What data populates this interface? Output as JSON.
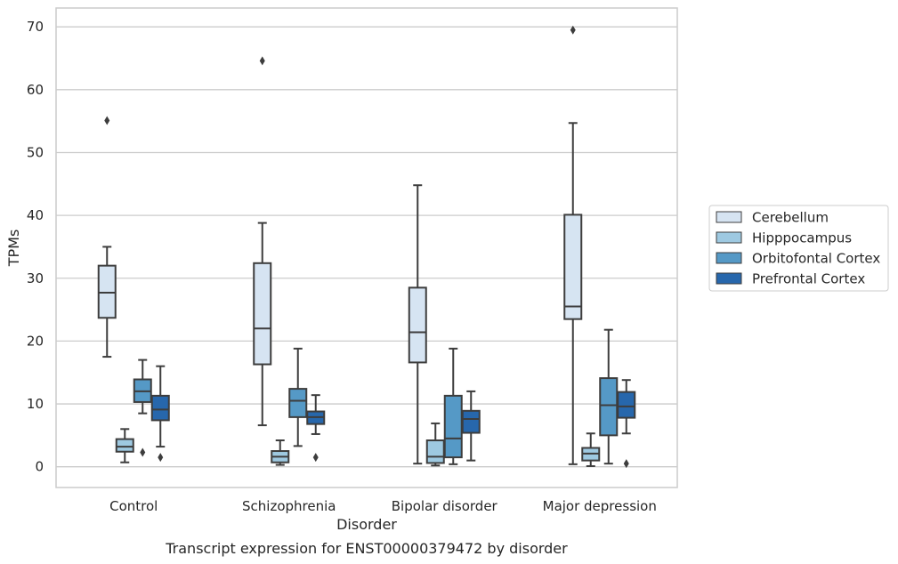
{
  "chart_data": {
    "type": "box",
    "xlabel": "Disorder",
    "ylabel": "TPMs",
    "caption": "Transcript expression for ENST00000379472 by disorder",
    "ylim": [
      -3.3,
      73
    ],
    "yticks": [
      0,
      10,
      20,
      30,
      40,
      50,
      60,
      70
    ],
    "grid": "horizontal",
    "legend_position": "right",
    "categories": [
      "Control",
      "Schizophrenia",
      "Bipolar disorder",
      "Major depression"
    ],
    "series": [
      {
        "name": "Cerebellum",
        "color": "#d6e4f2",
        "boxes": [
          {
            "whisker_low": 17.5,
            "q1": 23.7,
            "median": 27.7,
            "q3": 32.0,
            "whisker_high": 35.0,
            "outliers": [
              55.1
            ]
          },
          {
            "whisker_low": 6.6,
            "q1": 16.3,
            "median": 22.0,
            "q3": 32.4,
            "whisker_high": 38.8,
            "outliers": [
              64.6
            ]
          },
          {
            "whisker_low": 0.5,
            "q1": 16.6,
            "median": 21.4,
            "q3": 28.5,
            "whisker_high": 44.8,
            "outliers": []
          },
          {
            "whisker_low": 0.4,
            "q1": 23.5,
            "median": 25.5,
            "q3": 40.1,
            "whisker_high": 54.7,
            "outliers": [
              69.5
            ]
          }
        ]
      },
      {
        "name": "Hipppocampus",
        "color": "#9ec9e1",
        "boxes": [
          {
            "whisker_low": 0.7,
            "q1": 2.4,
            "median": 3.2,
            "q3": 4.4,
            "whisker_high": 6.0,
            "outliers": []
          },
          {
            "whisker_low": 0.3,
            "q1": 0.7,
            "median": 1.6,
            "q3": 2.5,
            "whisker_high": 4.2,
            "outliers": []
          },
          {
            "whisker_low": 0.2,
            "q1": 0.6,
            "median": 1.6,
            "q3": 4.2,
            "whisker_high": 6.9,
            "outliers": []
          },
          {
            "whisker_low": 0.1,
            "q1": 1.0,
            "median": 2.1,
            "q3": 3.0,
            "whisker_high": 5.3,
            "outliers": []
          }
        ]
      },
      {
        "name": "Orbitofontal Cortex",
        "color": "#5599c6",
        "boxes": [
          {
            "whisker_low": 8.5,
            "q1": 10.3,
            "median": 12.0,
            "q3": 13.9,
            "whisker_high": 17.0,
            "outliers": [
              2.3
            ]
          },
          {
            "whisker_low": 3.3,
            "q1": 7.9,
            "median": 10.5,
            "q3": 12.4,
            "whisker_high": 18.8,
            "outliers": []
          },
          {
            "whisker_low": 0.4,
            "q1": 1.5,
            "median": 4.5,
            "q3": 11.3,
            "whisker_high": 18.8,
            "outliers": []
          },
          {
            "whisker_low": 0.5,
            "q1": 5.0,
            "median": 9.8,
            "q3": 14.1,
            "whisker_high": 21.8,
            "outliers": []
          }
        ]
      },
      {
        "name": "Prefrontal Cortex",
        "color": "#2767ac",
        "boxes": [
          {
            "whisker_low": 3.2,
            "q1": 7.4,
            "median": 9.1,
            "q3": 11.3,
            "whisker_high": 16.0,
            "outliers": [
              1.5
            ]
          },
          {
            "whisker_low": 5.2,
            "q1": 6.8,
            "median": 7.9,
            "q3": 8.8,
            "whisker_high": 11.4,
            "outliers": [
              1.5
            ]
          },
          {
            "whisker_low": 1.0,
            "q1": 5.4,
            "median": 7.6,
            "q3": 8.9,
            "whisker_high": 12.0,
            "outliers": []
          },
          {
            "whisker_low": 5.3,
            "q1": 7.8,
            "median": 9.6,
            "q3": 11.9,
            "whisker_high": 13.8,
            "outliers": [
              0.5
            ]
          }
        ]
      }
    ]
  }
}
